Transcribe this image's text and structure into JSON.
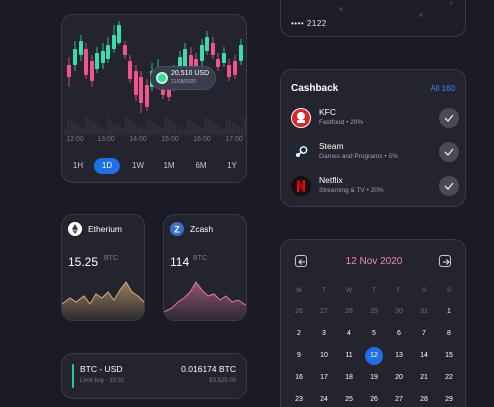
{
  "trade_chart": {
    "time_labels": [
      "12:00",
      "13:00",
      "14:00",
      "15:00",
      "16:00",
      "17:00"
    ],
    "ranges": [
      {
        "label": "1H",
        "active": false
      },
      {
        "label": "1D",
        "active": true
      },
      {
        "label": "1W",
        "active": false
      },
      {
        "label": "1M",
        "active": false
      },
      {
        "label": "6M",
        "active": false
      },
      {
        "label": "1Y",
        "active": false
      }
    ],
    "tooltip_value": "20,510 USD",
    "tooltip_sub": "21/08/2020",
    "colors": {
      "up": "#3ddbb0",
      "down": "#f0558a"
    }
  },
  "card": {
    "number": "•••• 2122"
  },
  "cashback": {
    "title": "Cashback",
    "all_label": "All 160",
    "items": [
      {
        "name": "KFC",
        "sub": "Fastfood • 20%",
        "logo": "kfc-logo"
      },
      {
        "name": "Steam",
        "sub": "Games and Programs • 5%",
        "logo": "steam-logo"
      },
      {
        "name": "Netflix",
        "sub": "Streaming & TV • 20%",
        "logo": "netflix-logo"
      }
    ]
  },
  "coins": [
    {
      "name": "Etherium",
      "value": "15.25",
      "unit": "BTC",
      "icon": "ethereum-icon",
      "color": "#c9a36a"
    },
    {
      "name": "Zcash",
      "value": "114",
      "unit": "BTC",
      "icon": "zcash-icon",
      "color": "#c46a8a"
    }
  ],
  "trade_row": {
    "pair": "BTC - USD",
    "sub": "Limit buy · 10:31",
    "amount": "0.016174 BTC",
    "usd": "$3,525.00"
  },
  "calendar": {
    "title": "12 Nov 2020",
    "weekdays": [
      "M",
      "T",
      "W",
      "T",
      "F",
      "S",
      "S"
    ],
    "weeks": [
      [
        "26",
        "27",
        "28",
        "29",
        "30",
        "31",
        "1"
      ],
      [
        "2",
        "3",
        "4",
        "5",
        "6",
        "7",
        "8"
      ],
      [
        "9",
        "10",
        "11",
        "12",
        "13",
        "14",
        "15"
      ],
      [
        "16",
        "17",
        "18",
        "19",
        "20",
        "21",
        "22"
      ],
      [
        "23",
        "24",
        "25",
        "26",
        "27",
        "28",
        "29"
      ]
    ],
    "dim_first_week_count": 6,
    "selected": "12"
  }
}
